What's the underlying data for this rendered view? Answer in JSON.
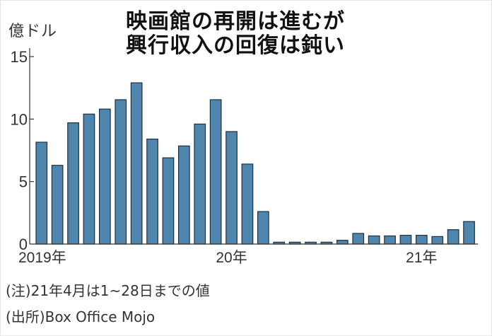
{
  "title": {
    "line1": "映画館の再開は進むが",
    "line2": "興行収入の回復は鈍い"
  },
  "unit_label": "億ドル",
  "notes": {
    "note": "(注)21年4月は1~28日までの値",
    "source": "(出所)Box Office Mojo"
  },
  "colors": {
    "bar_fill": "#4f86ad",
    "bar_stroke": "#1f2f3d",
    "axis": "#333333"
  },
  "chart_data": {
    "type": "bar",
    "title": "映画館の再開は進むが 興行収入の回復は鈍い",
    "xlabel": "",
    "ylabel": "億ドル",
    "ylim": [
      0,
      15
    ],
    "yticks": [
      0,
      5,
      10,
      15
    ],
    "grid": false,
    "legend": null,
    "x_tick_labels": [
      {
        "label": "2019年",
        "index": 0
      },
      {
        "label": "20年",
        "index": 12
      },
      {
        "label": "21年",
        "index": 24
      }
    ],
    "categories": [
      "2019-01",
      "2019-02",
      "2019-03",
      "2019-04",
      "2019-05",
      "2019-06",
      "2019-07",
      "2019-08",
      "2019-09",
      "2019-10",
      "2019-11",
      "2019-12",
      "2020-01",
      "2020-02",
      "2020-03",
      "2020-04",
      "2020-05",
      "2020-06",
      "2020-07",
      "2020-08",
      "2020-09",
      "2020-10",
      "2020-11",
      "2020-12",
      "2021-01",
      "2021-02",
      "2021-03",
      "2021-04"
    ],
    "values": [
      8.15,
      6.3,
      9.7,
      10.4,
      10.8,
      11.55,
      12.9,
      8.4,
      6.9,
      7.85,
      9.6,
      11.55,
      9.0,
      6.4,
      2.6,
      0.15,
      0.15,
      0.15,
      0.15,
      0.3,
      0.85,
      0.65,
      0.65,
      0.7,
      0.7,
      0.6,
      1.15,
      1.8
    ]
  }
}
